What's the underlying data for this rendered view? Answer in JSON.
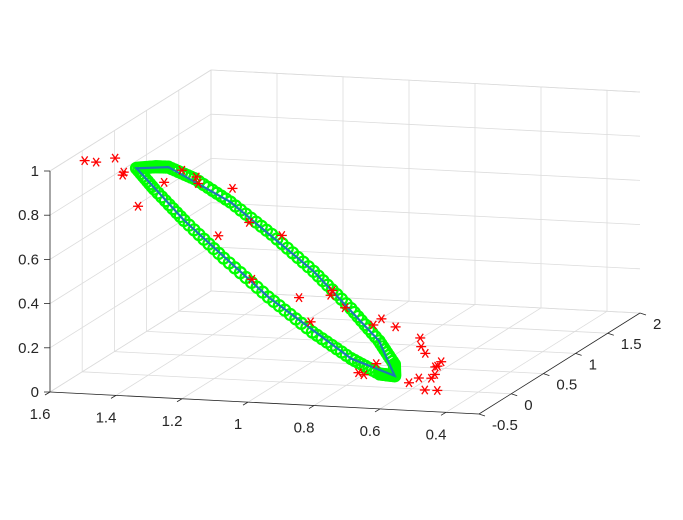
{
  "chart_data": {
    "type": "scatter3d",
    "title": "",
    "xlabel": "",
    "ylabel": "",
    "zlabel": "",
    "grid": true,
    "xlim": [
      0.3,
      1.6
    ],
    "ylim": [
      -0.5,
      2
    ],
    "zlim": [
      0,
      1
    ],
    "x_ticks": [
      "1.6",
      "1.4",
      "1.2",
      "1",
      "0.8",
      "0.6",
      "0.4"
    ],
    "x_tick_values": [
      1.6,
      1.4,
      1.2,
      1.0,
      0.8,
      0.6,
      0.4
    ],
    "y_ticks": [
      "-0.5",
      "0",
      "0.5",
      "1",
      "1.5",
      "2"
    ],
    "y_tick_values": [
      -0.5,
      0,
      0.5,
      1,
      1.5,
      2
    ],
    "z_ticks": [
      "0",
      "0.2",
      "0.4",
      "0.6",
      "0.8",
      "1"
    ],
    "z_tick_values": [
      0,
      0.2,
      0.4,
      0.6,
      0.8,
      1
    ],
    "series": [
      {
        "marker": "circle",
        "color": "#00ff00",
        "curve": "closed-ellipse",
        "points": [
          [
            1.431,
            -0.023,
            0.938
          ],
          [
            1.375,
            -0.036,
            0.851
          ],
          [
            1.282,
            -0.047,
            0.718
          ],
          [
            1.161,
            -0.053,
            0.558
          ],
          [
            1.026,
            -0.052,
            0.392
          ],
          [
            0.894,
            -0.044,
            0.242
          ],
          [
            0.779,
            -0.03,
            0.128
          ],
          [
            0.696,
            -0.013,
            0.062
          ],
          [
            0.654,
            0.005,
            0.053
          ],
          [
            0.658,
            0.021,
            0.102
          ],
          [
            0.707,
            0.033,
            0.202
          ],
          [
            0.794,
            0.041,
            0.341
          ],
          [
            0.907,
            0.042,
            0.5
          ],
          [
            1.033,
            0.036,
            0.659
          ],
          [
            1.156,
            0.025,
            0.798
          ],
          [
            1.262,
            0.011,
            0.898
          ],
          [
            1.338,
            -0.004,
            0.947
          ],
          [
            1.376,
            -0.016,
            0.948
          ]
        ]
      },
      {
        "marker": "line",
        "color": "#1f77b4",
        "curve": "closed-ellipse",
        "points": [
          [
            1.431,
            -0.023,
            0.938
          ],
          [
            1.282,
            -0.047,
            0.718
          ],
          [
            1.026,
            -0.052,
            0.392
          ],
          [
            0.779,
            -0.03,
            0.128
          ],
          [
            0.654,
            0.005,
            0.053
          ],
          [
            0.707,
            0.033,
            0.202
          ],
          [
            0.907,
            0.042,
            0.5
          ],
          [
            1.156,
            0.025,
            0.798
          ],
          [
            1.338,
            -0.004,
            0.947
          ]
        ]
      },
      {
        "marker": "asterisk",
        "color": "#ff0000",
        "points": [
          [
            1.573,
            -0.1,
            0.976
          ],
          [
            1.538,
            -0.101,
            0.972
          ],
          [
            1.494,
            -0.032,
            0.981
          ],
          [
            1.459,
            -0.094,
            0.918
          ],
          [
            1.486,
            0.061,
            0.901
          ],
          [
            1.412,
            -0.096,
            0.781
          ],
          [
            1.353,
            0.007,
            0.875
          ],
          [
            1.312,
            0.072,
            0.921
          ],
          [
            1.273,
            0.097,
            0.889
          ],
          [
            1.264,
            0.081,
            0.863
          ],
          [
            1.158,
            0.069,
            0.851
          ],
          [
            1.183,
            -0.024,
            0.652
          ],
          [
            1.127,
            0.17,
            0.681
          ],
          [
            1.024,
            0.148,
            0.634
          ],
          [
            1.078,
            -0.04,
            0.466
          ],
          [
            0.939,
            -0.02,
            0.39
          ],
          [
            0.846,
            0.02,
            0.422
          ],
          [
            0.902,
            -0.03,
            0.285
          ],
          [
            0.859,
            0.06,
            0.392
          ],
          [
            0.819,
            0.08,
            0.335
          ],
          [
            0.734,
            0.083,
            0.263
          ],
          [
            0.659,
            0.045,
            0.267
          ],
          [
            0.592,
            0.084,
            0.215
          ],
          [
            0.586,
            0.068,
            0.179
          ],
          [
            0.57,
            0.05,
            0.153
          ],
          [
            0.519,
            0.035,
            0.122
          ],
          [
            0.531,
            0.005,
            0.103
          ],
          [
            0.596,
            -0.07,
            0.04
          ],
          [
            0.544,
            0.01,
            0.05
          ],
          [
            0.556,
            -0.03,
            0.003
          ],
          [
            0.52,
            -0.02,
            0.002
          ],
          [
            0.539,
            0.04,
            0.062
          ],
          [
            0.542,
            0.096,
            0.089
          ],
          [
            0.575,
            -0.025,
            0.055
          ],
          [
            0.733,
            -0.07,
            0.066
          ],
          [
            0.757,
            -0.03,
            0.066
          ],
          [
            0.71,
            0.086,
            0.292
          ],
          [
            0.707,
            -0.01,
            0.107
          ]
        ]
      }
    ]
  }
}
